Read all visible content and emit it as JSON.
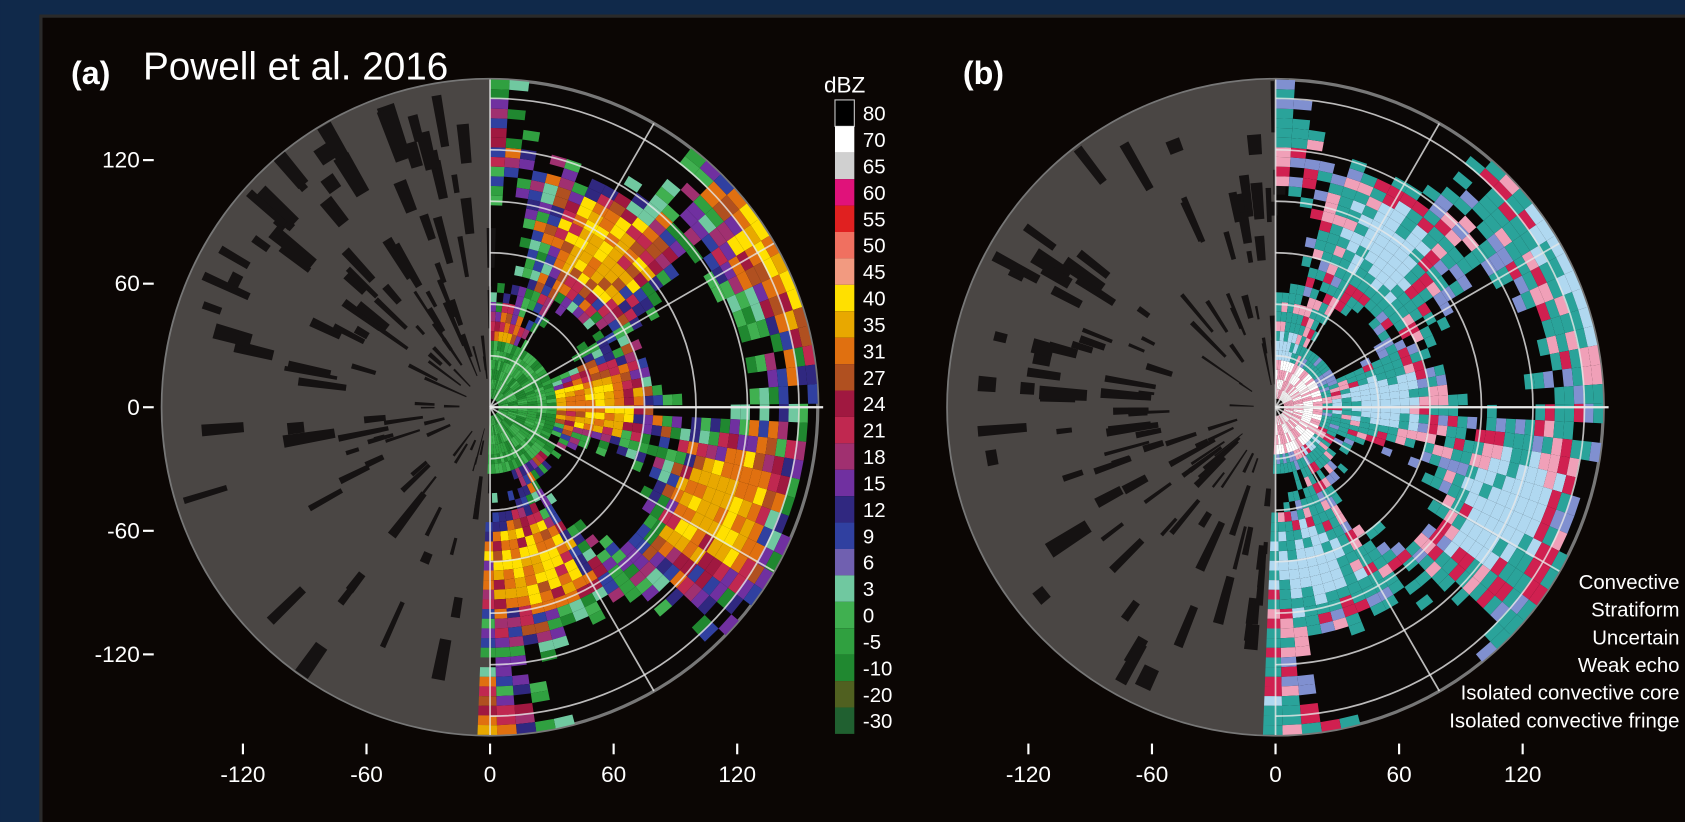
{
  "panel_a": {
    "label": "(a)",
    "citation": "Powell et al. 2016",
    "x_ticks": [
      -120,
      -60,
      0,
      60,
      120
    ],
    "y_ticks": [
      120,
      60,
      0,
      -60,
      -120
    ],
    "colorbar": {
      "title": "dBZ",
      "levels": [
        80,
        70,
        65,
        60,
        55,
        50,
        45,
        40,
        35,
        31,
        27,
        24,
        21,
        18,
        15,
        12,
        9,
        6,
        3,
        0,
        -5,
        -10,
        -20,
        -30
      ],
      "colors": [
        "#000000",
        "#ffffff",
        "#d0d0d0",
        "#e0127a",
        "#e02020",
        "#f07060",
        "#f29a80",
        "#ffe000",
        "#e8a800",
        "#e07010",
        "#b05020",
        "#a01840",
        "#c02850",
        "#a03070",
        "#7030a0",
        "#302880",
        "#3040a0",
        "#7060b0",
        "#70c8a0",
        "#40b050",
        "#30a040",
        "#208830",
        "#506020",
        "#206030"
      ]
    }
  },
  "panel_b": {
    "label": "(b)",
    "x_ticks": [
      -120,
      -60,
      0,
      60,
      120
    ],
    "legend": [
      "Convective",
      "Stratiform",
      "Uncertain",
      "Weak echo",
      "Isolated convective core",
      "Isolated convective fringe"
    ]
  }
}
